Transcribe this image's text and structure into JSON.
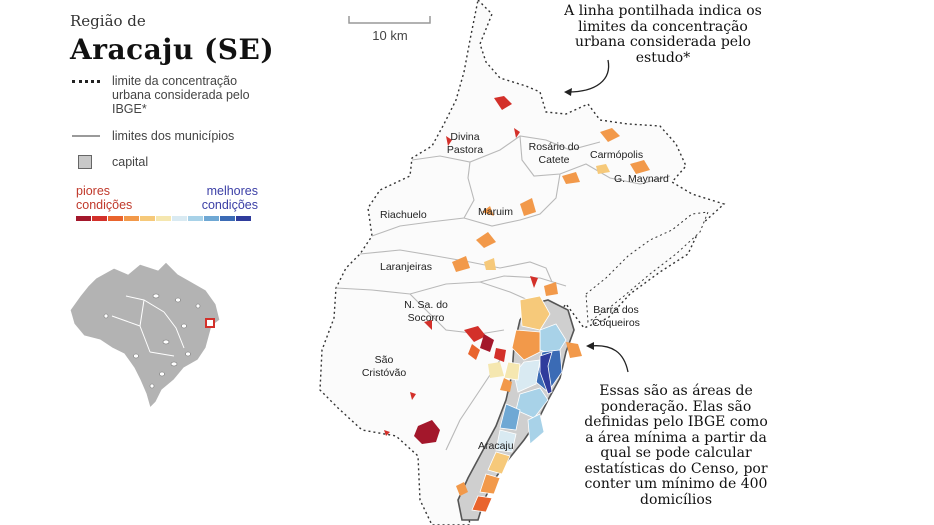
{
  "header": {
    "subtitle": "Região de",
    "title": "Aracaju (SE)"
  },
  "legend": {
    "urban_limit": "limite da concentração urbana considerada pelo IBGE*",
    "municipal_limits": "limites dos municípios",
    "capital": "capital",
    "scale_worse": "piores condições",
    "scale_better": "melhores condições",
    "scale_colors": [
      "#a3172b",
      "#d3302a",
      "#e9642d",
      "#f2994a",
      "#f6c97a",
      "#f5e7b0",
      "#d9eaf2",
      "#a8d2e8",
      "#6fa8d4",
      "#3b6bb5",
      "#2f3c9c"
    ]
  },
  "scale_bar": {
    "label": "10 km"
  },
  "callouts": {
    "top": "A linha pontilhada indica os limites da concentração urbana considerada pelo estudo*",
    "bottom": "Essas são as áreas de ponderação. Elas são definidas pelo IBGE como a área mínima a partir da qual se pode calcular estatísticas do Censo, por conter um mínimo de 400 domicílios"
  },
  "municipalities": {
    "divina_pastora": "Divina Pastora",
    "rosario_do_catete": "Rosário do Catete",
    "carmopolis": "Carmópolis",
    "general_maynard": "G. Maynard",
    "riachuelo": "Riachuelo",
    "maruim": "Maruim",
    "laranjeiras": "Laranjeiras",
    "nossa_senhora_do_socorro": "N. Sa. do Socorro",
    "barra_dos_coqueiros": "Barra dos Coqueiros",
    "sao_cristovao": "São Cristóvão",
    "aracaju": "Aracaju"
  },
  "inset": {
    "highlight_color": "#d3302a"
  }
}
